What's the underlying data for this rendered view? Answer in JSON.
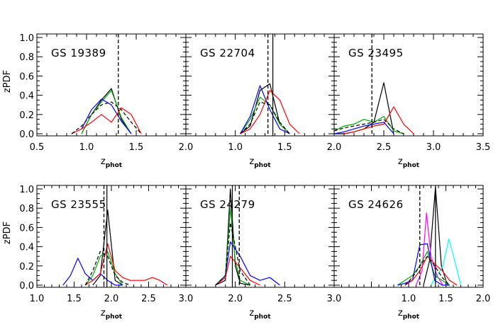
{
  "chart_data": [
    {
      "type": "line",
      "title": "GS 19389",
      "xlim": [
        0.5,
        2.0
      ],
      "ylim": [
        0.0,
        1.0
      ],
      "xticks": [
        "0.5",
        "1.0",
        "1.5",
        "2.0"
      ],
      "xticklabels_show": [
        true,
        true,
        true,
        true
      ],
      "yticks": [
        "0.0",
        "0.2",
        "0.4",
        "0.6",
        "0.8",
        "1.0"
      ],
      "show_yticklabels": true,
      "xlabel_main": "z",
      "xlabel_sub": "phot",
      "ylabel": "zPDF",
      "vlines": [
        {
          "x": 1.32,
          "style": "dashed"
        }
      ],
      "series": [
        {
          "color": "#000000",
          "dashed": false,
          "x": [
            0.95,
            1.05,
            1.15,
            1.25,
            1.35,
            1.45
          ],
          "y": [
            0.0,
            0.2,
            0.35,
            0.47,
            0.15,
            0.0
          ]
        },
        {
          "color": "#00aa00",
          "dashed": false,
          "x": [
            0.95,
            1.05,
            1.15,
            1.25,
            1.35,
            1.45
          ],
          "y": [
            0.0,
            0.2,
            0.33,
            0.45,
            0.17,
            0.0
          ]
        },
        {
          "color": "#0000ff",
          "dashed": false,
          "x": [
            0.95,
            1.05,
            1.15,
            1.25,
            1.35,
            1.45
          ],
          "y": [
            0.05,
            0.25,
            0.36,
            0.3,
            0.13,
            0.0
          ]
        },
        {
          "color": "#ff0000",
          "dashed": false,
          "x": [
            0.85,
            0.95,
            1.05,
            1.15,
            1.25,
            1.35,
            1.45,
            1.55
          ],
          "y": [
            0.0,
            0.05,
            0.12,
            0.2,
            0.12,
            0.27,
            0.2,
            0.0
          ]
        },
        {
          "color": "#000000",
          "dashed": true,
          "x": [
            0.85,
            0.95,
            1.05,
            1.15,
            1.25,
            1.35,
            1.45,
            1.55
          ],
          "y": [
            0.0,
            0.08,
            0.2,
            0.3,
            0.33,
            0.25,
            0.12,
            0.0
          ]
        }
      ]
    },
    {
      "type": "line",
      "title": "GS 22704",
      "xlim": [
        0.5,
        2.0
      ],
      "ylim": [
        0.0,
        1.0
      ],
      "xticks": [
        "0.5",
        "1.0",
        "1.5",
        "2.0"
      ],
      "xticklabels_show": [
        false,
        true,
        true,
        true
      ],
      "yticks": [
        "0.0",
        "0.2",
        "0.4",
        "0.6",
        "0.8",
        "1.0"
      ],
      "show_yticklabels": false,
      "xlabel_main": "z",
      "xlabel_sub": "phot",
      "ylabel": "",
      "vlines": [
        {
          "x": 1.33,
          "style": "dashed"
        },
        {
          "x": 1.38,
          "style": "solid"
        }
      ],
      "series": [
        {
          "color": "#000000",
          "dashed": false,
          "x": [
            1.05,
            1.15,
            1.25,
            1.35,
            1.45,
            1.55
          ],
          "y": [
            0.0,
            0.08,
            0.45,
            0.52,
            0.1,
            0.0
          ]
        },
        {
          "color": "#00aa00",
          "dashed": false,
          "x": [
            1.05,
            1.15,
            1.25,
            1.35,
            1.45,
            1.55
          ],
          "y": [
            0.0,
            0.15,
            0.38,
            0.3,
            0.1,
            0.0
          ]
        },
        {
          "color": "#0000ff",
          "dashed": false,
          "x": [
            1.05,
            1.15,
            1.25,
            1.35,
            1.45,
            1.55
          ],
          "y": [
            0.0,
            0.18,
            0.5,
            0.25,
            0.05,
            0.0
          ]
        },
        {
          "color": "#ff0000",
          "dashed": false,
          "x": [
            1.05,
            1.15,
            1.25,
            1.35,
            1.45,
            1.55,
            1.65
          ],
          "y": [
            0.0,
            0.05,
            0.2,
            0.45,
            0.35,
            0.1,
            0.0
          ]
        },
        {
          "color": "#000000",
          "dashed": true,
          "x": [
            1.05,
            1.15,
            1.25,
            1.35,
            1.45,
            1.55
          ],
          "y": [
            0.0,
            0.1,
            0.33,
            0.3,
            0.12,
            0.0
          ]
        }
      ]
    },
    {
      "type": "line",
      "title": "GS 23495",
      "xlim": [
        2.0,
        3.5
      ],
      "ylim": [
        0.0,
        1.0
      ],
      "xticks": [
        "2.0",
        "2.5",
        "3.0",
        "3.5"
      ],
      "xticklabels_show": [
        false,
        true,
        true,
        true
      ],
      "yticks": [
        "0.0",
        "0.2",
        "0.4",
        "0.6",
        "0.8",
        "1.0"
      ],
      "show_yticklabels": false,
      "xlabel_main": "z",
      "xlabel_sub": "phot",
      "ylabel": "",
      "vlines": [
        {
          "x": 2.38,
          "style": "dashed"
        }
      ],
      "series": [
        {
          "color": "#000000",
          "dashed": false,
          "x": [
            2.0,
            2.1,
            2.2,
            2.3,
            2.4,
            2.5,
            2.6
          ],
          "y": [
            0.0,
            0.0,
            0.02,
            0.05,
            0.12,
            0.53,
            0.0
          ]
        },
        {
          "color": "#00aa00",
          "dashed": false,
          "x": [
            2.0,
            2.1,
            2.2,
            2.3,
            2.4,
            2.5,
            2.6,
            2.7
          ],
          "y": [
            0.03,
            0.08,
            0.1,
            0.15,
            0.12,
            0.18,
            0.03,
            0.0
          ]
        },
        {
          "color": "#0000ff",
          "dashed": false,
          "x": [
            2.0,
            2.1,
            2.2,
            2.3,
            2.4,
            2.5,
            2.6
          ],
          "y": [
            0.0,
            0.02,
            0.05,
            0.08,
            0.1,
            0.12,
            0.0
          ]
        },
        {
          "color": "#ff0000",
          "dashed": false,
          "x": [
            2.1,
            2.2,
            2.3,
            2.4,
            2.5,
            2.6,
            2.7,
            2.8
          ],
          "y": [
            0.0,
            0.02,
            0.05,
            0.08,
            0.1,
            0.28,
            0.1,
            0.0
          ]
        },
        {
          "color": "#000000",
          "dashed": true,
          "x": [
            2.0,
            2.1,
            2.2,
            2.3,
            2.4,
            2.5,
            2.6,
            2.7
          ],
          "y": [
            0.03,
            0.06,
            0.08,
            0.1,
            0.12,
            0.15,
            0.05,
            0.0
          ]
        }
      ]
    },
    {
      "type": "line",
      "title": "GS 23555",
      "xlim": [
        1.0,
        3.0
      ],
      "ylim": [
        0.0,
        1.0
      ],
      "xticks": [
        "1.0",
        "1.5",
        "2.0",
        "2.5",
        "3.0"
      ],
      "xticklabels_show": [
        true,
        true,
        true,
        true,
        true
      ],
      "yticks": [
        "0.0",
        "0.2",
        "0.4",
        "0.6",
        "0.8",
        "1.0"
      ],
      "show_yticklabels": true,
      "xlabel_main": "z",
      "xlabel_sub": "phot",
      "ylabel": "zPDF",
      "vlines": [
        {
          "x": 1.9,
          "style": "dashed"
        },
        {
          "x": 1.94,
          "style": "solid"
        }
      ],
      "series": [
        {
          "color": "#000000",
          "dashed": false,
          "x": [
            1.75,
            1.85,
            1.95,
            2.05,
            2.15
          ],
          "y": [
            0.0,
            0.1,
            0.78,
            0.05,
            0.0
          ]
        },
        {
          "color": "#00aa00",
          "dashed": false,
          "x": [
            1.65,
            1.75,
            1.85,
            1.95,
            2.05,
            2.15
          ],
          "y": [
            0.0,
            0.1,
            0.3,
            0.35,
            0.12,
            0.0
          ]
        },
        {
          "color": "#0000ff",
          "dashed": false,
          "x": [
            1.35,
            1.45,
            1.55,
            1.65,
            1.75,
            1.85,
            1.95,
            2.05,
            2.15
          ],
          "y": [
            0.0,
            0.1,
            0.28,
            0.12,
            0.05,
            0.12,
            0.05,
            0.0,
            0.0
          ]
        },
        {
          "color": "#ff0000",
          "dashed": false,
          "x": [
            1.65,
            1.75,
            1.85,
            1.95,
            2.05,
            2.15,
            2.25,
            2.35,
            2.45,
            2.55,
            2.65,
            2.75
          ],
          "y": [
            0.0,
            0.05,
            0.12,
            0.43,
            0.15,
            0.08,
            0.05,
            0.05,
            0.05,
            0.08,
            0.05,
            0.0
          ]
        },
        {
          "color": "#000000",
          "dashed": true,
          "x": [
            1.65,
            1.75,
            1.85,
            1.95,
            2.05,
            2.15,
            2.25
          ],
          "y": [
            0.0,
            0.15,
            0.35,
            0.3,
            0.1,
            0.03,
            0.0
          ]
        }
      ]
    },
    {
      "type": "line",
      "title": "GS 24279",
      "xlim": [
        1.5,
        3.0
      ],
      "ylim": [
        0.0,
        1.0
      ],
      "xticks": [
        "1.5",
        "2.0",
        "2.5",
        "3.0"
      ],
      "xticklabels_show": [
        false,
        true,
        true,
        true
      ],
      "yticks": [
        "0.0",
        "0.2",
        "0.4",
        "0.6",
        "0.8",
        "1.0"
      ],
      "show_yticklabels": false,
      "xlabel_main": "z",
      "xlabel_sub": "phot",
      "ylabel": "",
      "vlines": [
        {
          "x": 1.97,
          "style": "solid"
        },
        {
          "x": 2.04,
          "style": "dashed"
        }
      ],
      "series": [
        {
          "color": "#000000",
          "dashed": false,
          "x": [
            1.8,
            1.9,
            1.95,
            2.0,
            2.05,
            2.15
          ],
          "y": [
            0.0,
            0.05,
            1.0,
            0.2,
            0.02,
            0.0
          ]
        },
        {
          "color": "#00aa00",
          "dashed": false,
          "x": [
            1.8,
            1.9,
            1.95,
            2.0,
            2.05,
            2.15
          ],
          "y": [
            0.0,
            0.1,
            0.8,
            0.25,
            0.05,
            0.0
          ]
        },
        {
          "color": "#0000ff",
          "dashed": false,
          "x": [
            1.8,
            1.9,
            1.95,
            2.05,
            2.15,
            2.25,
            2.35,
            2.45
          ],
          "y": [
            0.0,
            0.1,
            0.45,
            0.3,
            0.1,
            0.05,
            0.08,
            0.0
          ]
        },
        {
          "color": "#ff0000",
          "dashed": false,
          "x": [
            1.8,
            1.9,
            1.95,
            2.05,
            2.15,
            2.25
          ],
          "y": [
            0.0,
            0.08,
            0.3,
            0.18,
            0.05,
            0.0
          ]
        },
        {
          "color": "#000000",
          "dashed": true,
          "x": [
            1.8,
            1.9,
            1.95,
            2.05,
            2.15
          ],
          "y": [
            0.0,
            0.1,
            0.65,
            0.15,
            0.0
          ]
        }
      ]
    },
    {
      "type": "line",
      "title": "GS 24626",
      "xlim": [
        0.0,
        2.0
      ],
      "ylim": [
        0.0,
        1.0
      ],
      "xticks": [
        "0.0",
        "0.5",
        "1.0",
        "1.5",
        "2.0"
      ],
      "xticklabels_show": [
        false,
        false,
        true,
        true,
        true
      ],
      "yticks": [
        "0.0",
        "0.2",
        "0.4",
        "0.6",
        "0.8",
        "1.0"
      ],
      "show_yticklabels": false,
      "xlabel_main": "z",
      "xlabel_sub": "phot",
      "ylabel": "",
      "vlines": [
        {
          "x": 1.15,
          "style": "dashed"
        },
        {
          "x": 1.36,
          "style": "solid"
        }
      ],
      "series": [
        {
          "color": "#000000",
          "dashed": false,
          "x": [
            1.2,
            1.28,
            1.36,
            1.44,
            1.52
          ],
          "y": [
            0.0,
            0.25,
            1.02,
            0.2,
            0.0
          ]
        },
        {
          "color": "#00ffff",
          "dashed": false,
          "x": [
            1.3,
            1.38,
            1.46,
            1.54,
            1.62,
            1.7
          ],
          "y": [
            0.0,
            0.1,
            0.2,
            0.48,
            0.25,
            0.0
          ]
        },
        {
          "color": "#ff00ff",
          "dashed": false,
          "x": [
            1.1,
            1.18,
            1.24,
            1.3,
            1.38,
            1.46
          ],
          "y": [
            0.0,
            0.15,
            0.75,
            0.3,
            0.1,
            0.0
          ]
        },
        {
          "color": "#00aa00",
          "dashed": false,
          "x": [
            0.85,
            0.95,
            1.05,
            1.15,
            1.25,
            1.35,
            1.45,
            1.55
          ],
          "y": [
            0.0,
            0.05,
            0.1,
            0.2,
            0.35,
            0.1,
            0.05,
            0.0
          ]
        },
        {
          "color": "#0000ff",
          "dashed": false,
          "x": [
            0.85,
            0.95,
            1.05,
            1.15,
            1.25,
            1.35,
            1.45,
            1.55
          ],
          "y": [
            0.0,
            0.02,
            0.05,
            0.42,
            0.43,
            0.05,
            0.0,
            0.0
          ]
        },
        {
          "color": "#ff0000",
          "dashed": false,
          "x": [
            0.95,
            1.05,
            1.15,
            1.25,
            1.35,
            1.45,
            1.55,
            1.65
          ],
          "y": [
            0.0,
            0.05,
            0.15,
            0.3,
            0.22,
            0.15,
            0.05,
            0.0
          ]
        },
        {
          "color": "#000000",
          "dashed": true,
          "x": [
            0.95,
            1.05,
            1.15,
            1.25,
            1.35,
            1.45,
            1.55
          ],
          "y": [
            0.0,
            0.08,
            0.2,
            0.3,
            0.2,
            0.08,
            0.0
          ]
        }
      ]
    }
  ]
}
